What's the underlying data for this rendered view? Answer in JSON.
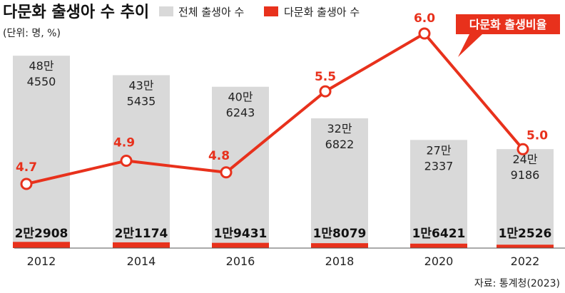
{
  "title": "다문화 출생아 수 추이",
  "unit": "(단위: 명, %)",
  "legend": [
    {
      "label": "전체 출생아 수",
      "color": "#d9d9d9"
    },
    {
      "label": "다문화 출생아 수",
      "color": "#e8311c"
    }
  ],
  "callout": "다문화 출생비율",
  "source": "자료: 통계청(2023)",
  "chart_data": {
    "type": "bar",
    "categories": [
      "2012",
      "2014",
      "2016",
      "2018",
      "2020",
      "2022"
    ],
    "series": [
      {
        "name": "전체 출생아 수",
        "values": [
          484550,
          435435,
          406243,
          326822,
          272337,
          249186
        ],
        "labels": [
          [
            "48만",
            "4550"
          ],
          [
            "43만",
            "5435"
          ],
          [
            "40만",
            "6243"
          ],
          [
            "32만",
            "6822"
          ],
          [
            "27만",
            "2337"
          ],
          [
            "24만",
            "9186"
          ]
        ],
        "color": "#d9d9d9"
      },
      {
        "name": "다문화 출생아 수",
        "values": [
          22908,
          21174,
          19431,
          18079,
          16421,
          12526
        ],
        "labels": [
          "2만2908",
          "2만1174",
          "1만9431",
          "1만8079",
          "1만6421",
          "1만2526"
        ],
        "color": "#e8311c"
      },
      {
        "name": "다문화 출생비율",
        "type": "line",
        "values": [
          4.7,
          4.9,
          4.8,
          5.5,
          6.0,
          5.0
        ],
        "labels": [
          "4.7",
          "4.9",
          "4.8",
          "5.5",
          "6.0",
          "5.0"
        ],
        "color": "#e8311c"
      }
    ]
  }
}
